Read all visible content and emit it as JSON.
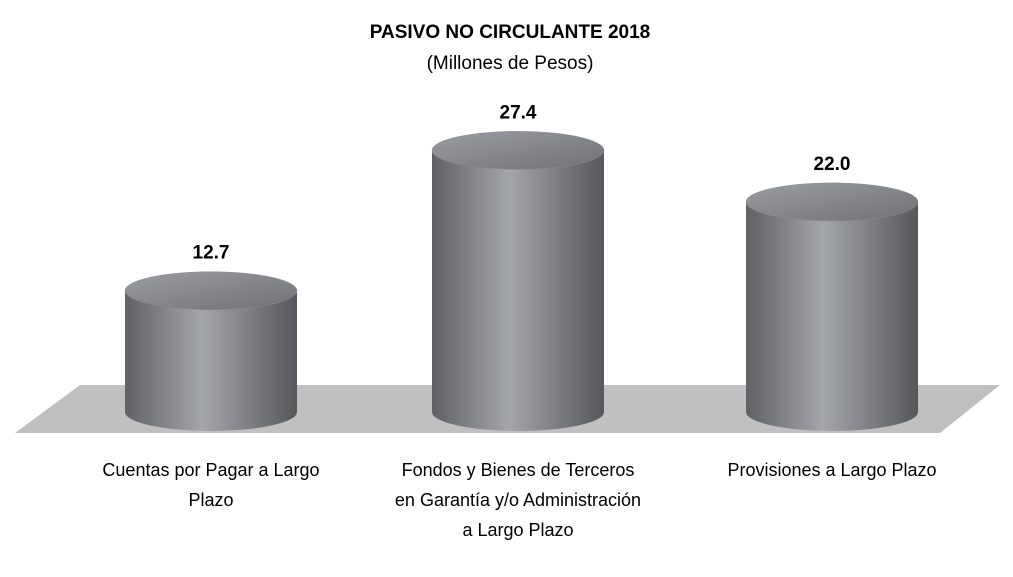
{
  "chart_data": {
    "type": "cylinder-bar",
    "title": "PASIVO NO CIRCULANTE 2018",
    "subtitle": "(Millones de Pesos)",
    "categories": [
      "Cuentas por Pagar a Largo Plazo",
      "Fondos y Bienes de Terceros en Garantía y/o Administración a Largo Plazo",
      "Provisiones a Largo Plazo"
    ],
    "values": [
      12.7,
      27.4,
      22.0
    ],
    "value_labels": [
      "12.7",
      "27.4",
      "22.0"
    ],
    "color": "#8a8c91"
  }
}
